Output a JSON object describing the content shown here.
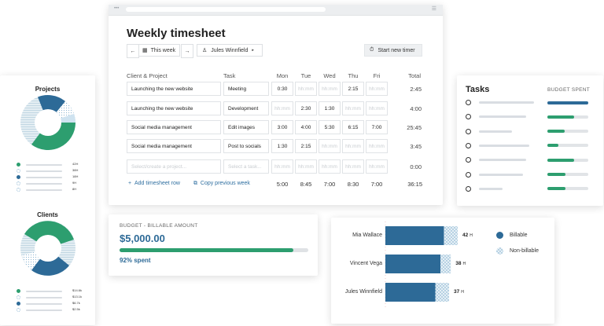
{
  "projects_card": {
    "title": "Projects",
    "legend": [
      {
        "color": "#2d9e6f",
        "pattern": "solid",
        "value": "42H"
      },
      {
        "color": "#dfe9ee",
        "pattern": "lines",
        "value": "38H"
      },
      {
        "color": "#2d6a97",
        "pattern": "solid",
        "value": "18H"
      },
      {
        "color": "#dce9f0",
        "pattern": "dots",
        "value": "9H"
      },
      {
        "color": "#e6edf1",
        "pattern": "dots",
        "value": "8H"
      }
    ]
  },
  "clients_card": {
    "title": "Clients",
    "legend": [
      {
        "color": "#2d9e6f",
        "pattern": "solid",
        "value": "$14.6k"
      },
      {
        "color": "#dfe9ee",
        "pattern": "lines",
        "value": "$13.1k"
      },
      {
        "color": "#2d6a97",
        "pattern": "solid",
        "value": "$6.7k"
      },
      {
        "color": "#dce9f0",
        "pattern": "dots",
        "value": "$2.5k"
      }
    ]
  },
  "timesheet": {
    "title": "Weekly timesheet",
    "week_label": "This week",
    "user_label": "Jules Winnfield",
    "start_timer_label": "Start new timer",
    "headers": {
      "client": "Client & Project",
      "task": "Task",
      "days": [
        "Mon",
        "Tue",
        "Wed",
        "Thu",
        "Fri"
      ],
      "total": "Total"
    },
    "rows": [
      {
        "project": "Launching the new website",
        "task": "Meeting",
        "days": [
          "0:30",
          "hh:mm",
          "hh:mm",
          "2:15",
          "hh:mm"
        ],
        "total": "2:45"
      },
      {
        "project": "Launching the new website",
        "task": "Development",
        "days": [
          "hh:mm",
          "2:30",
          "1:30",
          "hh:mm",
          "hh:mm"
        ],
        "total": "4:00"
      },
      {
        "project": "Social media management",
        "task": "Edit images",
        "days": [
          "3:00",
          "4:00",
          "5:30",
          "6:15",
          "7:00"
        ],
        "total": "25:45"
      },
      {
        "project": "Social media management",
        "task": "Post to socials",
        "days": [
          "1:30",
          "2:15",
          "hh:mm",
          "hh:mm",
          "hh:mm"
        ],
        "total": "3:45"
      }
    ],
    "empty_row": {
      "project_placeholder": "Select/create a project...",
      "task_placeholder": "Select a task...",
      "day_placeholder": "hh:mm",
      "total": "0:00"
    },
    "add_row_label": "Add timesheet row",
    "copy_week_label": "Copy previous week",
    "day_totals": [
      "5:00",
      "8:45",
      "7:00",
      "8:30",
      "7:00"
    ],
    "grand_total": "36:15"
  },
  "tasks_card": {
    "title": "Tasks",
    "budget_header": "BUDGET SPENT",
    "items": [
      {
        "spent": 1.0,
        "color": "#2d6a97"
      },
      {
        "spent": 0.65,
        "color": "#2d9e6f"
      },
      {
        "spent": 0.42,
        "color": "#2d9e6f"
      },
      {
        "spent": 0.26,
        "color": "#2d9e6f"
      },
      {
        "spent": 0.66,
        "color": "#2d9e6f"
      },
      {
        "spent": 0.44,
        "color": "#2d9e6f"
      },
      {
        "spent": 0.44,
        "color": "#2d9e6f"
      }
    ]
  },
  "budget_card": {
    "label": "BUDGET - BILLABLE AMOUNT",
    "amount": "$5,000.00",
    "spent_fraction": 0.92,
    "spent_label": "92% spent"
  },
  "chart_data": {
    "type": "bar",
    "orientation": "horizontal",
    "stacked": true,
    "categories": [
      "Mia Wallace",
      "Vincent Vega",
      "Jules Winnfield"
    ],
    "series": [
      {
        "name": "Billable",
        "values": [
          34,
          32,
          29
        ]
      },
      {
        "name": "Non-billable",
        "values": [
          8,
          6,
          8
        ]
      }
    ],
    "totals": [
      "42",
      "38",
      "37"
    ],
    "unit": "H",
    "xlim": [
      0,
      42
    ],
    "legend_position": "right",
    "colors": {
      "billable": "#2d6a97",
      "non_billable": "#cfe3f0"
    }
  },
  "colors": {
    "green": "#2d9e6f",
    "blue": "#2d6a97",
    "link": "#2f6fa0"
  }
}
